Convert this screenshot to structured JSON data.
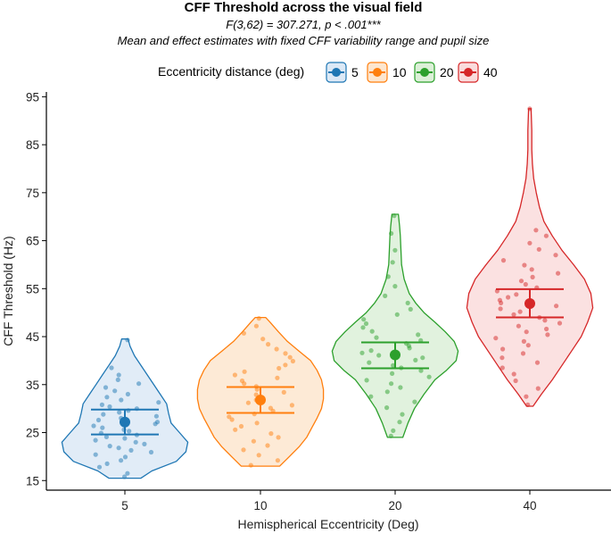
{
  "chart_data": {
    "type": "violin",
    "title": "CFF Threshold across the visual field",
    "subtitle_stats": "F(3,62) = 307.271, p < .001***",
    "subtitle_note": "Mean and effect estimates with fixed CFF variability range and pupil size",
    "legend_title": "Eccentricity distance (deg)",
    "xlabel": "Hemispherical Eccentricity (Deg)",
    "ylabel": "CFF Threshold (Hz)",
    "ylim": [
      13,
      96
    ],
    "yticks": [
      15,
      25,
      35,
      45,
      55,
      65,
      75,
      85,
      95
    ],
    "categories": [
      "5",
      "10",
      "20",
      "40"
    ],
    "series": [
      {
        "name": "5",
        "color": "#1f77b4",
        "fill": "#dce9f6",
        "mean": 27.2,
        "ci_low": 24.6,
        "ci_high": 29.8,
        "range": [
          15.5,
          44.5
        ],
        "density": [
          [
            15.5,
            0.25
          ],
          [
            17,
            0.42
          ],
          [
            19,
            0.8
          ],
          [
            21,
            0.95
          ],
          [
            23,
            0.98
          ],
          [
            25,
            0.85
          ],
          [
            27,
            0.72
          ],
          [
            29,
            0.68
          ],
          [
            31,
            0.65
          ],
          [
            33,
            0.55
          ],
          [
            35,
            0.45
          ],
          [
            37,
            0.35
          ],
          [
            39,
            0.25
          ],
          [
            41,
            0.15
          ],
          [
            43,
            0.08
          ],
          [
            44.5,
            0.05
          ]
        ],
        "points": [
          15.8,
          16.5,
          17.8,
          18.5,
          19.2,
          19.9,
          20.4,
          20.9,
          21.3,
          21.8,
          22.2,
          22.6,
          23.0,
          23.4,
          23.8,
          24.1,
          24.5,
          24.9,
          25.3,
          25.6,
          26.0,
          26.4,
          26.8,
          27.2,
          27.6,
          28.0,
          28.4,
          28.8,
          29.2,
          29.6,
          30.0,
          30.4,
          30.8,
          31.3,
          31.8,
          32.4,
          33.0,
          33.7,
          34.4,
          35.2,
          36.0,
          37.0,
          38.5,
          44.3
        ]
      },
      {
        "name": "10",
        "color": "#ff7f0e",
        "fill": "#fde6cf",
        "mean": 31.8,
        "ci_low": 29.1,
        "ci_high": 34.5,
        "range": [
          18,
          49
        ],
        "density": [
          [
            18,
            0.3
          ],
          [
            20,
            0.45
          ],
          [
            22,
            0.6
          ],
          [
            24,
            0.72
          ],
          [
            26,
            0.8
          ],
          [
            28,
            0.88
          ],
          [
            30,
            0.95
          ],
          [
            32,
            0.98
          ],
          [
            34,
            0.98
          ],
          [
            36,
            0.95
          ],
          [
            38,
            0.88
          ],
          [
            40,
            0.78
          ],
          [
            42,
            0.6
          ],
          [
            44,
            0.42
          ],
          [
            46,
            0.28
          ],
          [
            48,
            0.15
          ],
          [
            49,
            0.08
          ]
        ],
        "points": [
          18.2,
          19.2,
          20.3,
          21.4,
          22.3,
          23.2,
          24.0,
          24.8,
          25.6,
          26.3,
          27.0,
          27.7,
          28.3,
          28.9,
          29.5,
          30.1,
          30.7,
          31.2,
          31.8,
          32.3,
          32.9,
          33.4,
          34.0,
          34.6,
          35.2,
          35.8,
          36.4,
          37.0,
          37.7,
          38.4,
          39.1,
          39.9,
          40.7,
          41.5,
          42.4,
          43.4,
          44.5,
          45.7,
          47.2,
          48.8
        ]
      },
      {
        "name": "20",
        "color": "#2ca02c",
        "fill": "#dcf0d8",
        "mean": 41.2,
        "ci_low": 38.4,
        "ci_high": 43.8,
        "range": [
          24,
          70.5
        ],
        "density": [
          [
            24,
            0.12
          ],
          [
            27,
            0.2
          ],
          [
            30,
            0.3
          ],
          [
            33,
            0.45
          ],
          [
            36,
            0.62
          ],
          [
            38,
            0.8
          ],
          [
            40,
            0.95
          ],
          [
            42,
            0.98
          ],
          [
            44,
            0.92
          ],
          [
            46,
            0.78
          ],
          [
            48,
            0.62
          ],
          [
            50,
            0.45
          ],
          [
            52,
            0.32
          ],
          [
            54,
            0.22
          ],
          [
            57,
            0.14
          ],
          [
            60,
            0.1
          ],
          [
            63,
            0.09
          ],
          [
            66,
            0.08
          ],
          [
            68,
            0.07
          ],
          [
            70.5,
            0.05
          ]
        ],
        "points": [
          24.3,
          25.4,
          27.2,
          28.8,
          30.2,
          31.4,
          32.5,
          33.5,
          34.4,
          35.2,
          35.9,
          36.6,
          37.3,
          37.9,
          38.5,
          39.0,
          39.6,
          40.1,
          40.6,
          41.1,
          41.6,
          42.1,
          42.6,
          43.1,
          43.6,
          44.2,
          44.8,
          45.4,
          46.1,
          46.9,
          47.7,
          48.6,
          49.6,
          50.7,
          52.0,
          53.5,
          55.5,
          57.5,
          60.5,
          63.0,
          66.5,
          70.2
        ]
      },
      {
        "name": "40",
        "color": "#d62728",
        "fill": "#fadcdc",
        "mean": 51.9,
        "ci_low": 49.0,
        "ci_high": 54.9,
        "range": [
          30.5,
          92.5
        ],
        "density": [
          [
            30.5,
            0.05
          ],
          [
            33,
            0.18
          ],
          [
            36,
            0.35
          ],
          [
            39,
            0.5
          ],
          [
            42,
            0.65
          ],
          [
            45,
            0.8
          ],
          [
            48,
            0.9
          ],
          [
            51,
            0.98
          ],
          [
            54,
            0.95
          ],
          [
            57,
            0.85
          ],
          [
            60,
            0.68
          ],
          [
            63,
            0.5
          ],
          [
            66,
            0.35
          ],
          [
            69,
            0.22
          ],
          [
            72,
            0.15
          ],
          [
            75,
            0.1
          ],
          [
            78,
            0.06
          ],
          [
            81,
            0.04
          ],
          [
            84,
            0.03
          ],
          [
            88,
            0.03
          ],
          [
            92.5,
            0.02
          ]
        ],
        "points": [
          30.8,
          32.5,
          34.2,
          35.8,
          37.2,
          38.5,
          39.6,
          40.6,
          41.5,
          42.4,
          43.2,
          44.0,
          44.7,
          45.4,
          46.0,
          46.6,
          47.2,
          47.8,
          48.4,
          49.0,
          49.6,
          50.2,
          50.8,
          51.4,
          52.0,
          52.6,
          53.2,
          53.8,
          54.5,
          55.2,
          55.9,
          56.6,
          57.4,
          58.2,
          59.0,
          59.9,
          60.9,
          62.0,
          63.2,
          64.5,
          66.0,
          67.2,
          92.5
        ]
      }
    ]
  }
}
